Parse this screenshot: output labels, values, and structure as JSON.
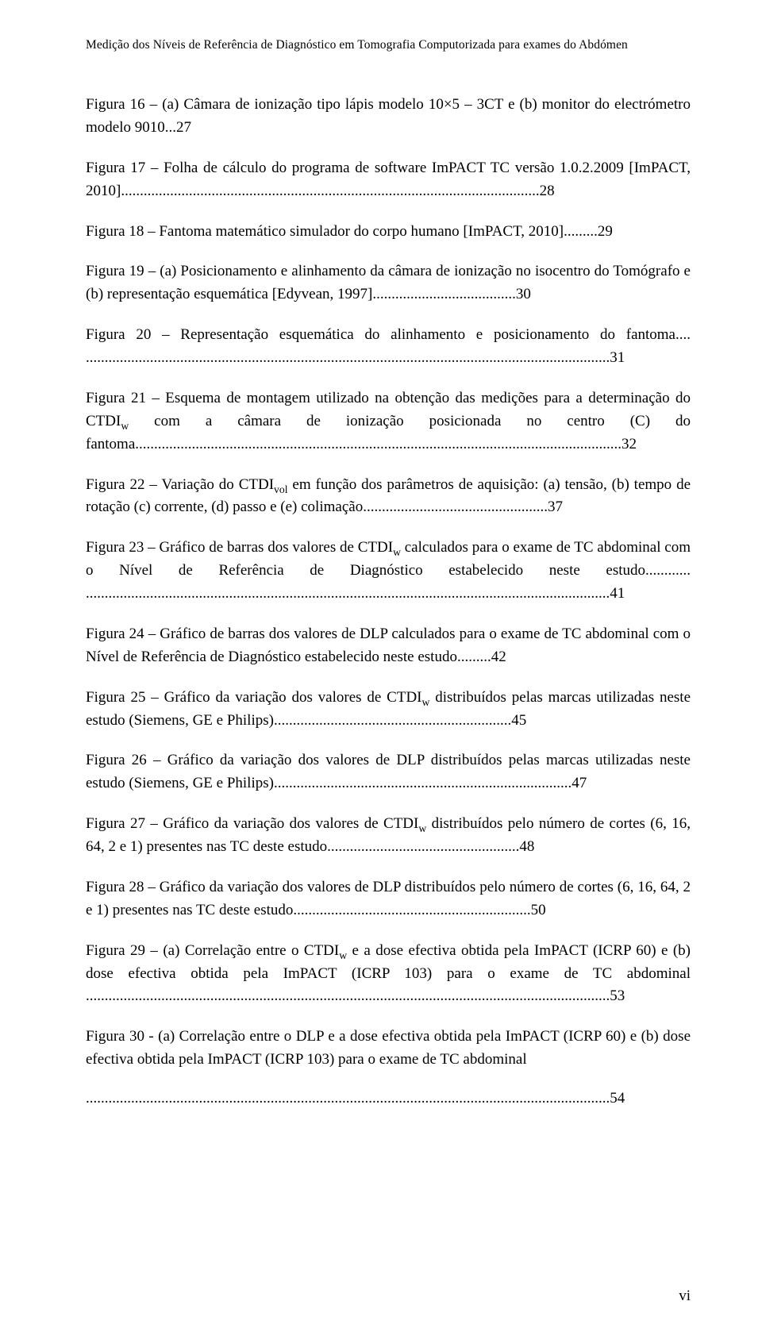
{
  "header": "Medição dos Níveis de Referência de Diagnóstico em Tomografia Computorizada para exames do Abdómen",
  "entries": {
    "fig16": "Figura 16 – (a) Câmara de ionização tipo lápis modelo 10×5 – 3CT e (b) monitor do electrómetro modelo 9010...27",
    "fig17": "Figura 17 – Folha de cálculo do programa de software ImPACT TC versão 1.0.2.2009 [ImPACT, 2010]...............................................................................................................28",
    "fig18": "Figura 18 – Fantoma matemático simulador do corpo humano [ImPACT, 2010].........29",
    "fig19": "Figura 19 – (a) Posicionamento e alinhamento da câmara de ionização no isocentro do Tomógrafo e (b) representação esquemática [Edyvean, 1997]......................................30",
    "fig20": "Figura 20 – Representação esquemática do alinhamento e posicionamento do fantoma.... ...........................................................................................................................................31",
    "fig21_pre": "Figura 21 – Esquema de montagem utilizado na obtenção das medições para a determinação do CTDI",
    "fig21_post": " com a câmara de ionização posicionada no centro (C) do fantoma.................................................................................................................................32",
    "fig22_pre": "Figura 22 – Variação do CTDI",
    "fig22_post": " em função dos parâmetros de aquisição: (a) tensão, (b) tempo de rotação (c) corrente, (d) passo e (e) colimação.................................................37",
    "fig23_pre": "Figura 23 – Gráfico de barras dos valores de CTDI",
    "fig23_post": " calculados para o exame de TC abdominal com o Nível de Referência de Diagnóstico estabelecido neste estudo............ ...........................................................................................................................................41",
    "fig24": "Figura 24 – Gráfico de barras dos valores de DLP calculados para o exame de TC abdominal com o Nível de Referência de Diagnóstico estabelecido neste estudo.........42",
    "fig25_pre": "Figura 25 – Gráfico da variação dos valores de CTDI",
    "fig25_post": " distribuídos pelas marcas utilizadas neste estudo (Siemens, GE e Philips)...............................................................45",
    "fig26": "Figura 26 – Gráfico da variação dos valores de DLP distribuídos pelas marcas utilizadas neste estudo (Siemens, GE e Philips)...............................................................................47",
    "fig27_pre": "Figura 27 – Gráfico da variação dos valores de CTDI",
    "fig27_post": " distribuídos pelo número de cortes (6, 16, 64, 2 e 1) presentes nas TC deste estudo...................................................48",
    "fig28": "Figura 28 – Gráfico da variação dos valores de DLP distribuídos pelo número de cortes (6, 16, 64, 2 e 1) presentes nas TC deste estudo...............................................................50",
    "fig29_pre": "Figura 29 – (a) Correlação entre o CTDI",
    "fig29_post": " e a dose efectiva  obtida pela ImPACT (ICRP 60) e (b) dose efectiva obtida pela ImPACT (ICRP 103) para o exame de TC abdominal ...........................................................................................................................................53",
    "fig30": "Figura 30 - (a) Correlação entre o DLP e a dose efectiva  obtida pela ImPACT (ICRP 60) e (b) dose efectiva obtida pela ImPACT (ICRP 103) para o exame de TC abdominal",
    "fig30_dots": "...........................................................................................................................................54"
  },
  "subscripts": {
    "w": "w",
    "vol": "vol"
  },
  "page_number": "vi"
}
